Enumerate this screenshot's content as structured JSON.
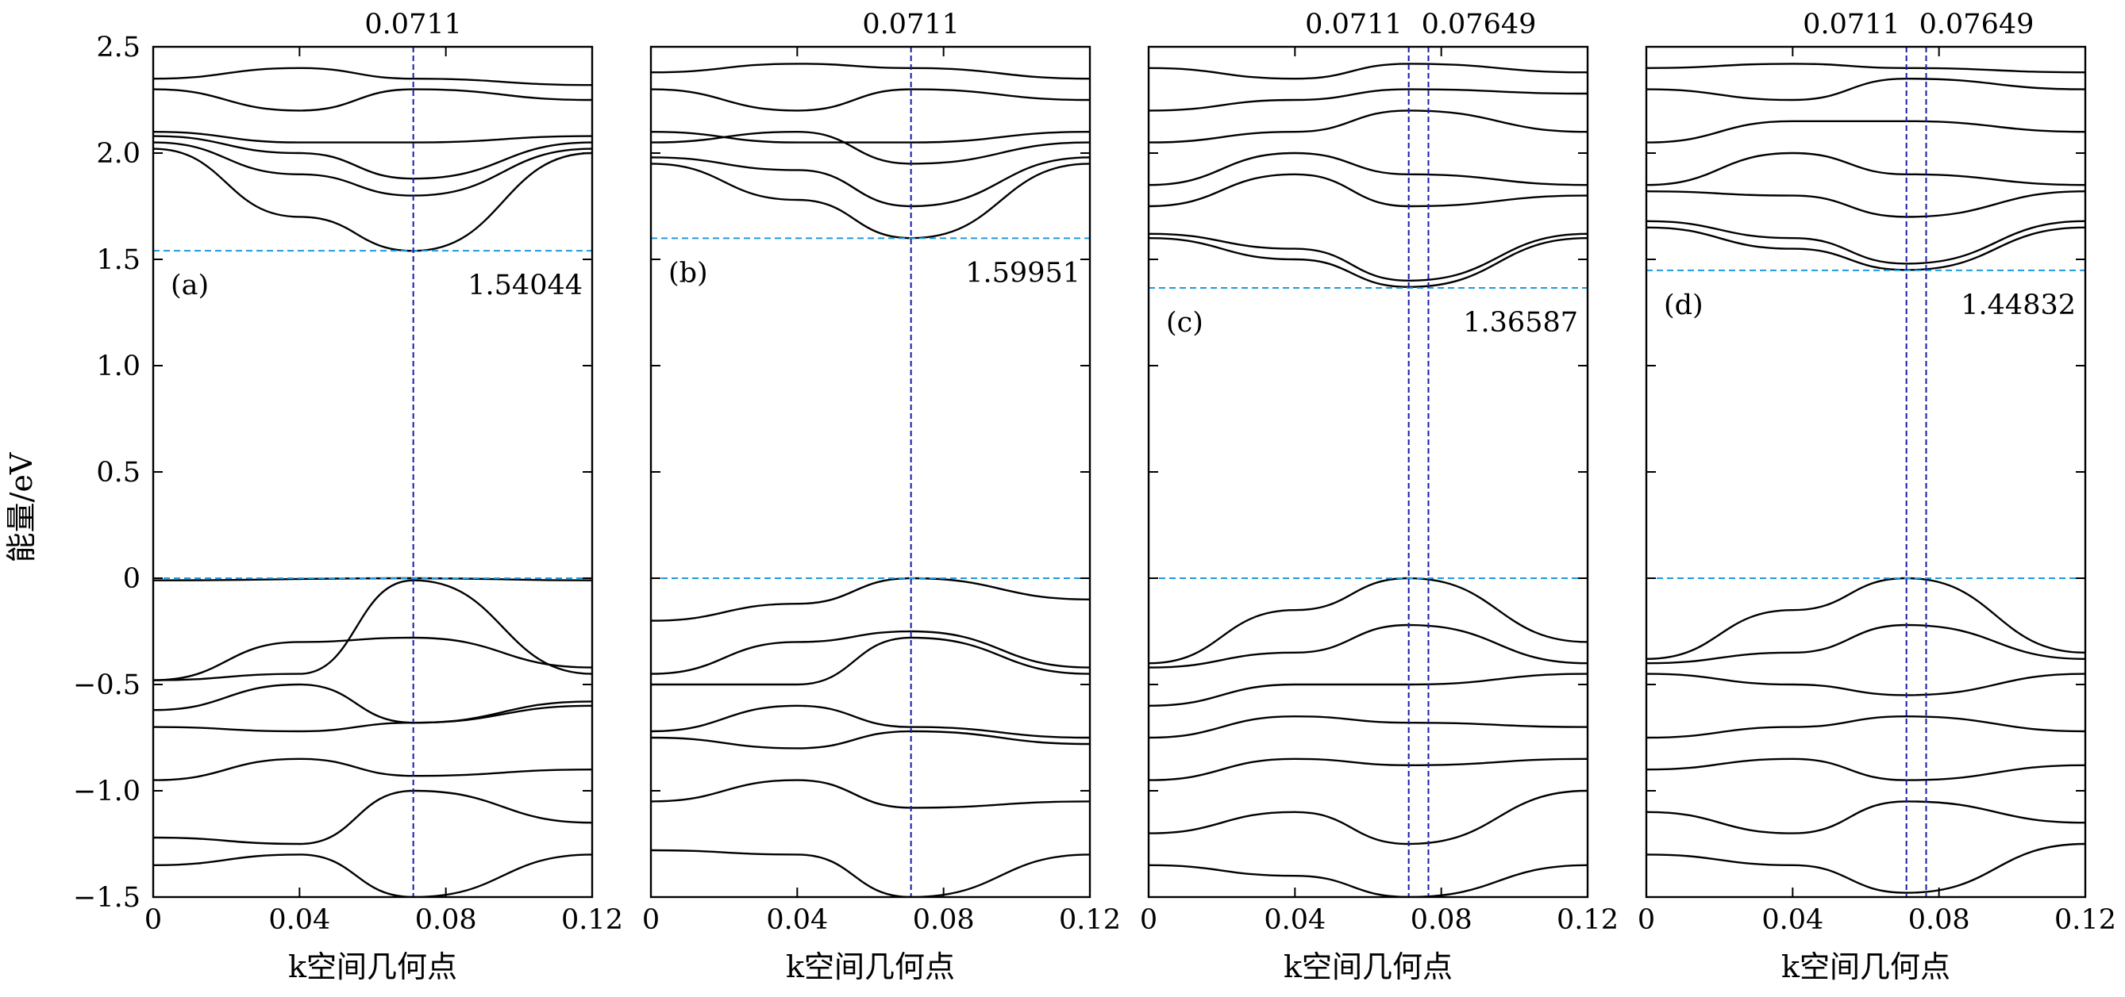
{
  "figure": {
    "ylabel": "能量/eV",
    "xlabel": "k空间几何点",
    "xlim": [
      0,
      0.12
    ],
    "ylim": [
      -1.5,
      2.5
    ],
    "xticks": [
      "0",
      "0.04",
      "0.08",
      "0.12"
    ],
    "yticks": [
      "−1.5",
      "−1.0",
      "−0.5",
      "0",
      "0.5",
      "1.0",
      "1.5",
      "2.0",
      "2.5"
    ],
    "colors": {
      "bands": "#000000",
      "fermi": "#1f9bdc",
      "kpoint": "#1a1aa8"
    }
  },
  "chart_data": [
    {
      "type": "line",
      "panel_label": "(a)",
      "kpoints": [
        0.0711
      ],
      "kpoint_labels": [
        "0.0711"
      ],
      "gap_value_label": "1.54044",
      "vbm": 0,
      "cbm": 1.54044,
      "xlim": [
        0,
        0.12
      ],
      "ylim": [
        -1.5,
        2.5
      ],
      "series": [
        {
          "x": [
            0,
            0.0711,
            0.12
          ],
          "y": [
            -0.01,
            0,
            -0.01
          ]
        },
        {
          "x": [
            0,
            0.04,
            0.0711,
            0.12
          ],
          "y": [
            -0.48,
            -0.45,
            -0.01,
            -0.45
          ]
        },
        {
          "x": [
            0,
            0.04,
            0.0711,
            0.12
          ],
          "y": [
            -0.48,
            -0.3,
            -0.28,
            -0.42
          ]
        },
        {
          "x": [
            0,
            0.04,
            0.0711,
            0.12
          ],
          "y": [
            -0.62,
            -0.5,
            -0.68,
            -0.6
          ]
        },
        {
          "x": [
            0,
            0.04,
            0.0711,
            0.12
          ],
          "y": [
            -0.7,
            -0.72,
            -0.68,
            -0.58
          ]
        },
        {
          "x": [
            0,
            0.04,
            0.0711,
            0.12
          ],
          "y": [
            -0.95,
            -0.85,
            -0.93,
            -0.9
          ]
        },
        {
          "x": [
            0,
            0.04,
            0.0711,
            0.12
          ],
          "y": [
            -1.22,
            -1.25,
            -1.0,
            -1.15
          ]
        },
        {
          "x": [
            0,
            0.04,
            0.0711,
            0.12
          ],
          "y": [
            -1.35,
            -1.3,
            -1.5,
            -1.3
          ]
        },
        {
          "x": [
            0,
            0.04,
            0.0711,
            0.12
          ],
          "y": [
            2.02,
            1.7,
            1.54,
            2.0
          ]
        },
        {
          "x": [
            0,
            0.04,
            0.0711,
            0.12
          ],
          "y": [
            2.05,
            1.9,
            1.8,
            2.02
          ]
        },
        {
          "x": [
            0,
            0.04,
            0.0711,
            0.12
          ],
          "y": [
            2.08,
            2.0,
            1.88,
            2.05
          ]
        },
        {
          "x": [
            0,
            0.04,
            0.0711,
            0.12
          ],
          "y": [
            2.1,
            2.05,
            2.05,
            2.08
          ]
        },
        {
          "x": [
            0,
            0.04,
            0.0711,
            0.12
          ],
          "y": [
            2.3,
            2.2,
            2.3,
            2.25
          ]
        },
        {
          "x": [
            0,
            0.04,
            0.0711,
            0.12
          ],
          "y": [
            2.35,
            2.4,
            2.35,
            2.32
          ]
        }
      ]
    },
    {
      "type": "line",
      "panel_label": "(b)",
      "kpoints": [
        0.0711
      ],
      "kpoint_labels": [
        "0.0711"
      ],
      "gap_value_label": "1.59951",
      "vbm": 0,
      "cbm": 1.59951,
      "xlim": [
        0,
        0.12
      ],
      "ylim": [
        -1.5,
        2.5
      ],
      "series": [
        {
          "x": [
            0,
            0.04,
            0.0711,
            0.12
          ],
          "y": [
            -0.2,
            -0.12,
            0,
            -0.1
          ]
        },
        {
          "x": [
            0,
            0.04,
            0.0711,
            0.12
          ],
          "y": [
            -0.45,
            -0.3,
            -0.25,
            -0.42
          ]
        },
        {
          "x": [
            0,
            0.04,
            0.0711,
            0.12
          ],
          "y": [
            -0.5,
            -0.5,
            -0.28,
            -0.45
          ]
        },
        {
          "x": [
            0,
            0.04,
            0.0711,
            0.12
          ],
          "y": [
            -0.72,
            -0.6,
            -0.7,
            -0.75
          ]
        },
        {
          "x": [
            0,
            0.04,
            0.0711,
            0.12
          ],
          "y": [
            -0.75,
            -0.8,
            -0.72,
            -0.78
          ]
        },
        {
          "x": [
            0,
            0.04,
            0.0711,
            0.12
          ],
          "y": [
            -1.05,
            -0.95,
            -1.08,
            -1.05
          ]
        },
        {
          "x": [
            0,
            0.04,
            0.0711,
            0.12
          ],
          "y": [
            -1.28,
            -1.3,
            -1.5,
            -1.3
          ]
        },
        {
          "x": [
            0,
            0.04,
            0.0711,
            0.12
          ],
          "y": [
            1.95,
            1.78,
            1.6,
            1.95
          ]
        },
        {
          "x": [
            0,
            0.04,
            0.0711,
            0.12
          ],
          "y": [
            1.98,
            1.92,
            1.75,
            1.98
          ]
        },
        {
          "x": [
            0,
            0.04,
            0.0711,
            0.12
          ],
          "y": [
            2.05,
            2.1,
            1.95,
            2.05
          ]
        },
        {
          "x": [
            0,
            0.04,
            0.0711,
            0.12
          ],
          "y": [
            2.1,
            2.05,
            2.05,
            2.1
          ]
        },
        {
          "x": [
            0,
            0.04,
            0.0711,
            0.12
          ],
          "y": [
            2.3,
            2.2,
            2.3,
            2.25
          ]
        },
        {
          "x": [
            0,
            0.04,
            0.0711,
            0.12
          ],
          "y": [
            2.38,
            2.42,
            2.4,
            2.35
          ]
        }
      ]
    },
    {
      "type": "line",
      "panel_label": "(c)",
      "kpoints": [
        0.0711,
        0.07649
      ],
      "kpoint_labels": [
        "0.0711",
        "0.07649"
      ],
      "gap_value_label": "1.36587",
      "vbm": 0,
      "cbm": 1.36587,
      "xlim": [
        0,
        0.12
      ],
      "ylim": [
        -1.5,
        2.5
      ],
      "series": [
        {
          "x": [
            0,
            0.04,
            0.0711,
            0.12
          ],
          "y": [
            -0.4,
            -0.15,
            0,
            -0.3
          ]
        },
        {
          "x": [
            0,
            0.04,
            0.0711,
            0.12
          ],
          "y": [
            -0.42,
            -0.35,
            -0.22,
            -0.4
          ]
        },
        {
          "x": [
            0,
            0.04,
            0.0711,
            0.12
          ],
          "y": [
            -0.6,
            -0.5,
            -0.5,
            -0.45
          ]
        },
        {
          "x": [
            0,
            0.04,
            0.0711,
            0.12
          ],
          "y": [
            -0.75,
            -0.65,
            -0.68,
            -0.7
          ]
        },
        {
          "x": [
            0,
            0.04,
            0.0711,
            0.12
          ],
          "y": [
            -0.95,
            -0.85,
            -0.88,
            -0.85
          ]
        },
        {
          "x": [
            0,
            0.04,
            0.0711,
            0.12
          ],
          "y": [
            -1.2,
            -1.1,
            -1.25,
            -1.0
          ]
        },
        {
          "x": [
            0,
            0.04,
            0.0711,
            0.12
          ],
          "y": [
            -1.35,
            -1.4,
            -1.5,
            -1.35
          ]
        },
        {
          "x": [
            0,
            0.04,
            0.0711,
            0.12
          ],
          "y": [
            1.6,
            1.5,
            1.37,
            1.6
          ]
        },
        {
          "x": [
            0,
            0.04,
            0.0711,
            0.12
          ],
          "y": [
            1.62,
            1.55,
            1.4,
            1.62
          ]
        },
        {
          "x": [
            0,
            0.04,
            0.0711,
            0.12
          ],
          "y": [
            1.75,
            1.9,
            1.75,
            1.8
          ]
        },
        {
          "x": [
            0,
            0.04,
            0.0711,
            0.12
          ],
          "y": [
            1.85,
            2.0,
            1.9,
            1.85
          ]
        },
        {
          "x": [
            0,
            0.04,
            0.0711,
            0.12
          ],
          "y": [
            2.05,
            2.1,
            2.2,
            2.1
          ]
        },
        {
          "x": [
            0,
            0.04,
            0.0711,
            0.12
          ],
          "y": [
            2.2,
            2.25,
            2.3,
            2.28
          ]
        },
        {
          "x": [
            0,
            0.04,
            0.0711,
            0.12
          ],
          "y": [
            2.4,
            2.35,
            2.42,
            2.38
          ]
        }
      ]
    },
    {
      "type": "line",
      "panel_label": "(d)",
      "kpoints": [
        0.0711,
        0.07649
      ],
      "kpoint_labels": [
        "0.0711",
        "0.07649"
      ],
      "gap_value_label": "1.44832",
      "vbm": 0,
      "cbm": 1.44832,
      "xlim": [
        0,
        0.12
      ],
      "ylim": [
        -1.5,
        2.5
      ],
      "series": [
        {
          "x": [
            0,
            0.04,
            0.0711,
            0.12
          ],
          "y": [
            -0.38,
            -0.15,
            0,
            -0.35
          ]
        },
        {
          "x": [
            0,
            0.04,
            0.0711,
            0.12
          ],
          "y": [
            -0.4,
            -0.35,
            -0.22,
            -0.38
          ]
        },
        {
          "x": [
            0,
            0.04,
            0.0711,
            0.12
          ],
          "y": [
            -0.45,
            -0.5,
            -0.55,
            -0.45
          ]
        },
        {
          "x": [
            0,
            0.04,
            0.0711,
            0.12
          ],
          "y": [
            -0.75,
            -0.7,
            -0.65,
            -0.72
          ]
        },
        {
          "x": [
            0,
            0.04,
            0.0711,
            0.12
          ],
          "y": [
            -0.9,
            -0.85,
            -0.95,
            -0.88
          ]
        },
        {
          "x": [
            0,
            0.04,
            0.0711,
            0.12
          ],
          "y": [
            -1.1,
            -1.2,
            -1.05,
            -1.15
          ]
        },
        {
          "x": [
            0,
            0.04,
            0.0711,
            0.12
          ],
          "y": [
            -1.3,
            -1.35,
            -1.48,
            -1.25
          ]
        },
        {
          "x": [
            0,
            0.04,
            0.0711,
            0.12
          ],
          "y": [
            1.65,
            1.55,
            1.45,
            1.65
          ]
        },
        {
          "x": [
            0,
            0.04,
            0.0711,
            0.12
          ],
          "y": [
            1.68,
            1.6,
            1.48,
            1.68
          ]
        },
        {
          "x": [
            0,
            0.04,
            0.0711,
            0.12
          ],
          "y": [
            1.82,
            1.8,
            1.7,
            1.82
          ]
        },
        {
          "x": [
            0,
            0.04,
            0.0711,
            0.12
          ],
          "y": [
            1.85,
            2.0,
            1.9,
            1.85
          ]
        },
        {
          "x": [
            0,
            0.04,
            0.0711,
            0.12
          ],
          "y": [
            2.05,
            2.15,
            2.15,
            2.1
          ]
        },
        {
          "x": [
            0,
            0.04,
            0.0711,
            0.12
          ],
          "y": [
            2.3,
            2.25,
            2.35,
            2.3
          ]
        },
        {
          "x": [
            0,
            0.04,
            0.0711,
            0.12
          ],
          "y": [
            2.4,
            2.42,
            2.4,
            2.38
          ]
        }
      ]
    }
  ]
}
